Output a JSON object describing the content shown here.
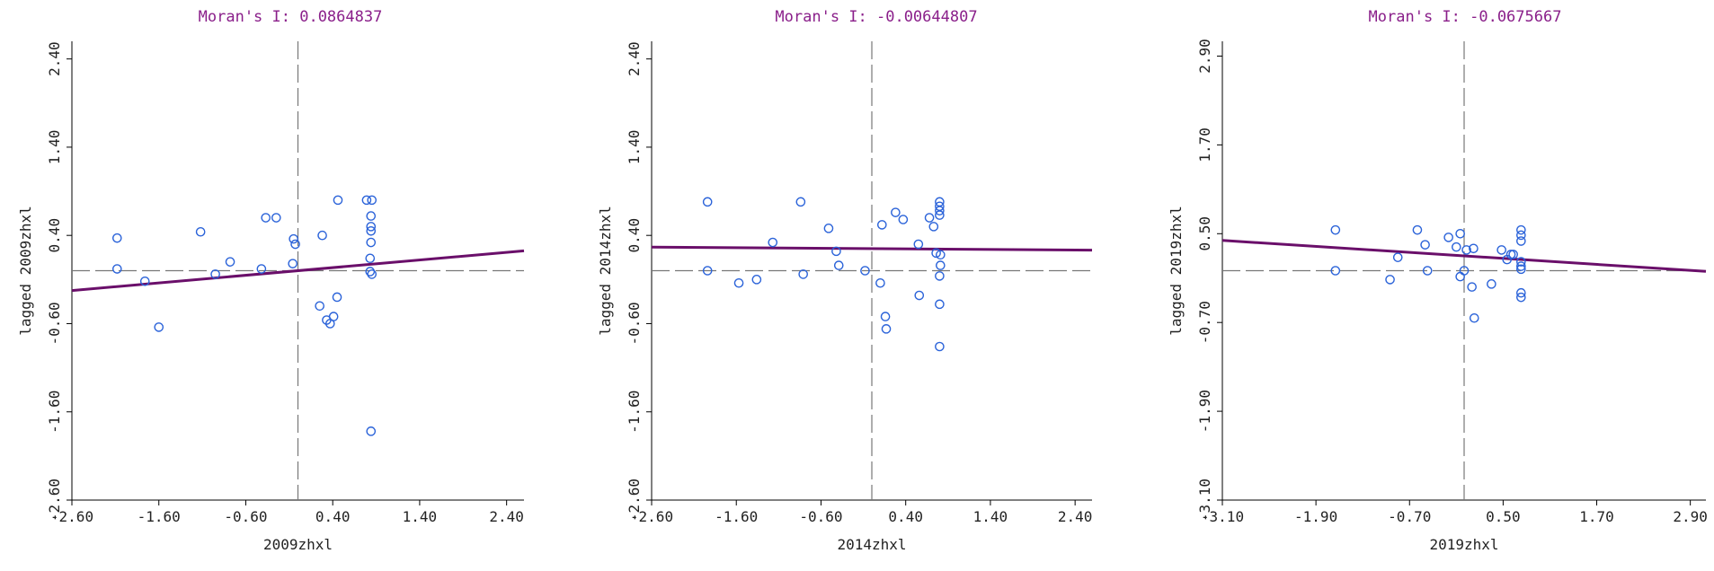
{
  "chart_data": [
    {
      "type": "scatter",
      "title": "Moran's I: 0.0864837",
      "xlabel": "2009zhxl",
      "ylabel": "lagged 2009zhxl",
      "xlim": [
        -2.6,
        2.6
      ],
      "ylim": [
        -2.6,
        2.6
      ],
      "xticks": [
        "-2.60",
        "-1.60",
        "-0.60",
        "0.40",
        "1.40",
        "2.40"
      ],
      "xtick_values": [
        -2.6,
        -1.6,
        -0.6,
        0.4,
        1.4,
        2.4
      ],
      "yticks": [
        "-2.60",
        "-1.60",
        "-0.60",
        "0.40",
        "1.40",
        "2.40"
      ],
      "ytick_values": [
        -2.6,
        -1.6,
        -0.6,
        0.4,
        1.4,
        2.4
      ],
      "mean_x": 0.0,
      "mean_y": 0.0,
      "regression": {
        "slope": 0.0864837,
        "intercept": 0.0
      },
      "points": [
        {
          "x": -2.08,
          "y": 0.37
        },
        {
          "x": -2.08,
          "y": 0.02
        },
        {
          "x": -1.76,
          "y": -0.12
        },
        {
          "x": -1.6,
          "y": -0.64
        },
        {
          "x": -1.12,
          "y": 0.44
        },
        {
          "x": -0.95,
          "y": -0.04
        },
        {
          "x": -0.78,
          "y": 0.1
        },
        {
          "x": -0.42,
          "y": 0.02
        },
        {
          "x": -0.37,
          "y": 0.6
        },
        {
          "x": -0.25,
          "y": 0.6
        },
        {
          "x": -0.05,
          "y": 0.36
        },
        {
          "x": -0.03,
          "y": 0.3
        },
        {
          "x": -0.06,
          "y": 0.08
        },
        {
          "x": 0.25,
          "y": -0.4
        },
        {
          "x": 0.28,
          "y": 0.4
        },
        {
          "x": 0.33,
          "y": -0.56
        },
        {
          "x": 0.37,
          "y": -0.6
        },
        {
          "x": 0.41,
          "y": -0.52
        },
        {
          "x": 0.45,
          "y": -0.3
        },
        {
          "x": 0.46,
          "y": 0.8
        },
        {
          "x": 0.79,
          "y": 0.8
        },
        {
          "x": 0.85,
          "y": 0.8
        },
        {
          "x": 0.84,
          "y": 0.62
        },
        {
          "x": 0.84,
          "y": 0.5
        },
        {
          "x": 0.84,
          "y": 0.45
        },
        {
          "x": 0.84,
          "y": 0.32
        },
        {
          "x": 0.83,
          "y": 0.14
        },
        {
          "x": 0.85,
          "y": -0.04
        },
        {
          "x": 0.83,
          "y": -0.01
        },
        {
          "x": 0.84,
          "y": -1.82
        }
      ]
    },
    {
      "type": "scatter",
      "title": "Moran's I: -0.00644807",
      "xlabel": "2014zhxl",
      "ylabel": "lagged 2014zhxl",
      "xlim": [
        -2.6,
        2.6
      ],
      "ylim": [
        -2.6,
        2.6
      ],
      "xticks": [
        "-2.60",
        "-1.60",
        "-0.60",
        "0.40",
        "1.40",
        "2.40"
      ],
      "xtick_values": [
        -2.6,
        -1.6,
        -0.6,
        0.4,
        1.4,
        2.4
      ],
      "yticks": [
        "-2.60",
        "-1.60",
        "-0.60",
        "0.40",
        "1.40",
        "2.40"
      ],
      "ytick_values": [
        -2.6,
        -1.6,
        -0.6,
        0.4,
        1.4,
        2.4
      ],
      "mean_x": 0.0,
      "mean_y": 0.0,
      "regression": {
        "slope": -0.00644807,
        "intercept": 0.25
      },
      "points": [
        {
          "x": -1.94,
          "y": 0.78
        },
        {
          "x": -1.94,
          "y": 0.0
        },
        {
          "x": -1.57,
          "y": -0.14
        },
        {
          "x": -1.36,
          "y": -0.1
        },
        {
          "x": -1.17,
          "y": 0.32
        },
        {
          "x": -0.84,
          "y": 0.78
        },
        {
          "x": -0.81,
          "y": -0.04
        },
        {
          "x": -0.51,
          "y": 0.48
        },
        {
          "x": -0.42,
          "y": 0.22
        },
        {
          "x": -0.39,
          "y": 0.06
        },
        {
          "x": -0.08,
          "y": 0.0
        },
        {
          "x": 0.1,
          "y": -0.14
        },
        {
          "x": 0.12,
          "y": 0.52
        },
        {
          "x": 0.16,
          "y": -0.52
        },
        {
          "x": 0.17,
          "y": -0.66
        },
        {
          "x": 0.28,
          "y": 0.66
        },
        {
          "x": 0.37,
          "y": 0.58
        },
        {
          "x": 0.55,
          "y": 0.3
        },
        {
          "x": 0.56,
          "y": -0.28
        },
        {
          "x": 0.68,
          "y": 0.6
        },
        {
          "x": 0.73,
          "y": 0.5
        },
        {
          "x": 0.76,
          "y": 0.2
        },
        {
          "x": 0.8,
          "y": 0.78
        },
        {
          "x": 0.8,
          "y": 0.73
        },
        {
          "x": 0.8,
          "y": 0.68
        },
        {
          "x": 0.8,
          "y": 0.63
        },
        {
          "x": 0.81,
          "y": 0.18
        },
        {
          "x": 0.81,
          "y": 0.06
        },
        {
          "x": 0.8,
          "y": -0.06
        },
        {
          "x": 0.8,
          "y": -0.38
        },
        {
          "x": 0.8,
          "y": -0.86
        }
      ]
    },
    {
      "type": "scatter",
      "title": "Moran's I: -0.0675667",
      "xlabel": "2019zhxl",
      "ylabel": "lagged 2019zhxl",
      "xlim": [
        -3.1,
        3.1
      ],
      "ylim": [
        -3.1,
        3.1
      ],
      "xticks": [
        "-3.10",
        "-1.90",
        "-0.70",
        "0.50",
        "1.70",
        "2.90"
      ],
      "xtick_values": [
        -3.1,
        -1.9,
        -0.7,
        0.5,
        1.7,
        2.9
      ],
      "yticks": [
        "-3.10",
        "-1.90",
        "-0.70",
        "0.50",
        "1.70",
        "2.90"
      ],
      "ytick_values": [
        -3.1,
        -1.9,
        -0.7,
        0.5,
        1.7,
        2.9
      ],
      "mean_x": 0.0,
      "mean_y": 0.0,
      "regression": {
        "slope": -0.0675667,
        "intercept": 0.2
      },
      "points": [
        {
          "x": -1.65,
          "y": 0.55
        },
        {
          "x": -1.65,
          "y": 0.0
        },
        {
          "x": -0.95,
          "y": -0.12
        },
        {
          "x": -0.85,
          "y": 0.18
        },
        {
          "x": -0.6,
          "y": 0.55
        },
        {
          "x": -0.5,
          "y": 0.35
        },
        {
          "x": -0.47,
          "y": 0.0
        },
        {
          "x": -0.2,
          "y": 0.45
        },
        {
          "x": -0.1,
          "y": 0.32
        },
        {
          "x": -0.05,
          "y": 0.5
        },
        {
          "x": -0.05,
          "y": -0.08
        },
        {
          "x": 0.0,
          "y": 0.0
        },
        {
          "x": 0.03,
          "y": 0.28
        },
        {
          "x": 0.1,
          "y": -0.22
        },
        {
          "x": 0.12,
          "y": 0.3
        },
        {
          "x": 0.13,
          "y": -0.64
        },
        {
          "x": 0.35,
          "y": -0.18
        },
        {
          "x": 0.48,
          "y": 0.28
        },
        {
          "x": 0.55,
          "y": 0.15
        },
        {
          "x": 0.6,
          "y": 0.22
        },
        {
          "x": 0.63,
          "y": 0.22
        },
        {
          "x": 0.73,
          "y": 0.55
        },
        {
          "x": 0.73,
          "y": 0.48
        },
        {
          "x": 0.73,
          "y": 0.4
        },
        {
          "x": 0.73,
          "y": 0.12
        },
        {
          "x": 0.73,
          "y": 0.06
        },
        {
          "x": 0.73,
          "y": 0.02
        },
        {
          "x": 0.73,
          "y": -0.3
        },
        {
          "x": 0.73,
          "y": -0.36
        }
      ]
    }
  ]
}
